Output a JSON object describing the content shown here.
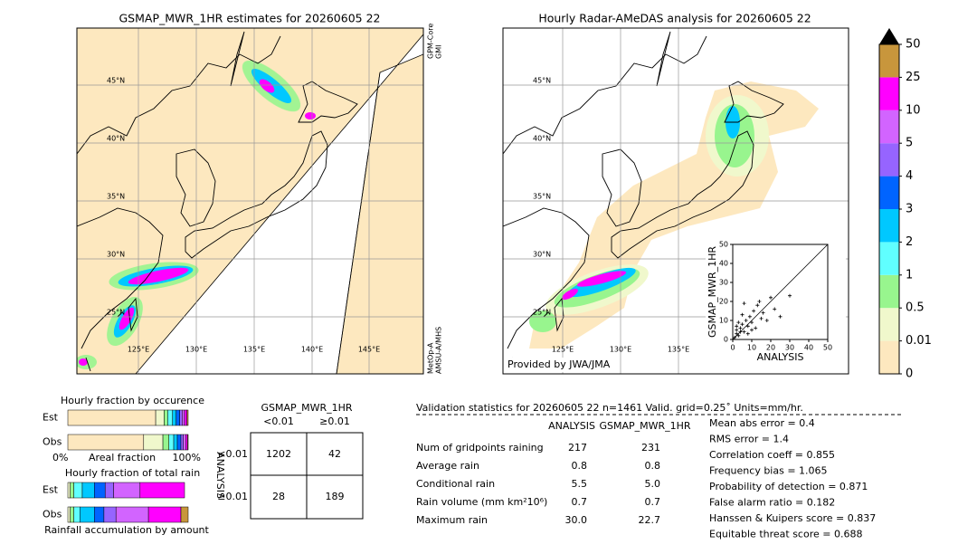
{
  "left_map": {
    "title": "GSMAP_MWR_1HR estimates for 20260605 22",
    "lat_labels": [
      "45°N",
      "40°N",
      "35°N",
      "30°N",
      "25°N"
    ],
    "lon_labels": [
      "125°E",
      "130°E",
      "135°E",
      "140°E",
      "145°E"
    ],
    "sensor_top": [
      "GPM-Core",
      "GMI"
    ],
    "sensor_bottom": [
      "MetOp-A",
      "AMSU-A/MHS"
    ]
  },
  "right_map": {
    "title": "Hourly Radar-AMeDAS analysis for 20260605 22",
    "lat_labels": [
      "45°N",
      "40°N",
      "35°N",
      "30°N",
      "25°N"
    ],
    "lon_labels": [
      "125°E",
      "130°E",
      "135°E"
    ],
    "credit": "Provided by JWA/JMA"
  },
  "scatter": {
    "xlabel": "ANALYSIS",
    "ylabel": "GSMAP_MWR_1HR",
    "xlim": [
      0,
      50
    ],
    "ylim": [
      0,
      50
    ],
    "xticks": [
      0,
      10,
      20,
      30,
      40,
      50
    ],
    "yticks": [
      0,
      10,
      20,
      30,
      40,
      50
    ],
    "x": [
      1,
      2,
      2,
      3,
      4,
      5,
      6,
      7,
      8,
      9,
      10,
      11,
      12,
      13,
      15,
      16,
      18,
      20,
      22,
      25,
      30,
      3,
      5,
      8,
      2,
      6,
      10,
      14,
      4
    ],
    "y": [
      1,
      3,
      5,
      2,
      6,
      8,
      4,
      10,
      7,
      12,
      9,
      15,
      6,
      18,
      11,
      14,
      10,
      22,
      16,
      12,
      23,
      9,
      13,
      3,
      7,
      19,
      5,
      20,
      4
    ]
  },
  "colorbar": {
    "ticks": [
      0,
      0.01,
      0.5,
      1,
      2,
      3,
      4,
      5,
      10,
      25,
      50
    ],
    "colors": [
      "#fde8bf",
      "#f0f8cc",
      "#98f58e",
      "#60ffff",
      "#00c8ff",
      "#0064ff",
      "#9664ff",
      "#d264ff",
      "#ff00ff",
      "#c8963c"
    ]
  },
  "occurrence": {
    "title": "Hourly fraction by occurence",
    "rows": [
      "Est",
      "Obs"
    ],
    "left": "0%",
    "center": "Areal fraction",
    "right": "100%",
    "est": [
      0.73,
      0.07,
      0.03,
      0.04,
      0.03,
      0.03,
      0.02,
      0.02,
      0.02,
      0.01
    ],
    "obs": [
      0.63,
      0.16,
      0.05,
      0.04,
      0.03,
      0.03,
      0.02,
      0.02,
      0.015,
      0.005
    ]
  },
  "total_rain": {
    "title": "Hourly fraction of total rain",
    "rows": [
      "Est",
      "Obs"
    ],
    "footer": "Rainfall accumulation by amount",
    "est": [
      0,
      0.02,
      0.03,
      0.07,
      0.1,
      0.09,
      0.07,
      0.22,
      0.37,
      0
    ],
    "obs": [
      0,
      0.02,
      0.03,
      0.05,
      0.12,
      0.08,
      0.1,
      0.27,
      0.27,
      0.06
    ]
  },
  "contingency": {
    "title": "GSMAP_MWR_1HR",
    "cols": [
      "<0.01",
      "≥0.01"
    ],
    "side": "ANALYSIS",
    "rows": [
      "<0.01",
      "≥0.01"
    ],
    "cells": [
      [
        "1202",
        "42"
      ],
      [
        "28",
        "189"
      ]
    ]
  },
  "validation": {
    "header": "Validation statistics for 20260605 22  n=1461 Valid. grid=0.25˚ Units=mm/hr.",
    "columns": [
      "ANALYSIS",
      "GSMAP_MWR_1HR"
    ],
    "rows": [
      [
        "Num of gridpoints raining",
        "217",
        "231"
      ],
      [
        "Average rain",
        "0.8",
        "0.8"
      ],
      [
        "Conditional rain",
        "5.5",
        "5.0"
      ],
      [
        "Rain volume (mm km²10⁶)",
        "0.7",
        "0.7"
      ],
      [
        "Maximum rain",
        "30.0",
        "22.7"
      ]
    ],
    "scores": [
      "Mean abs error =    0.4",
      "RMS error =    1.4",
      "Correlation coeff =  0.855",
      "Frequency bias =  1.065",
      "Probability of detection =  0.871",
      "False alarm ratio =  0.182",
      "Hanssen & Kuipers score =  0.837",
      "Equitable threat score =  0.688"
    ]
  }
}
